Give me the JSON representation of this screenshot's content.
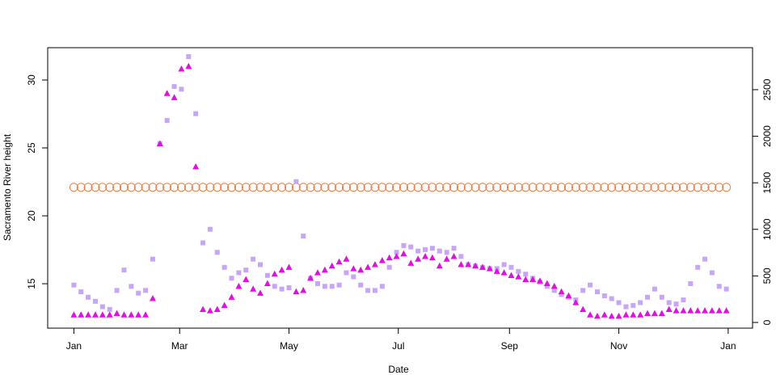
{
  "chart_data": {
    "type": "scatter",
    "x_label": "Date",
    "y_label": "Sacramento River height",
    "x": [
      0,
      4,
      8,
      12,
      16,
      20,
      24,
      28,
      32,
      36,
      40,
      44,
      48,
      52,
      56,
      60,
      64,
      68,
      72,
      76,
      80,
      84,
      88,
      92,
      96,
      100,
      104,
      108,
      112,
      116,
      120,
      124,
      128,
      132,
      136,
      140,
      144,
      148,
      152,
      156,
      160,
      164,
      168,
      172,
      176,
      180,
      184,
      188,
      192,
      196,
      200,
      204,
      208,
      212,
      216,
      220,
      224,
      228,
      232,
      236,
      240,
      244,
      248,
      252,
      256,
      260,
      264,
      268,
      272,
      276,
      280,
      284,
      288,
      292,
      296,
      300,
      304,
      308,
      312,
      316,
      320,
      324,
      328,
      332,
      336,
      340,
      344,
      348,
      352,
      356,
      360,
      364
    ],
    "xlim": [
      -14.6,
      378.6
    ],
    "xticks": [
      {
        "value": 0,
        "label": "Jan"
      },
      {
        "value": 59,
        "label": "Mar"
      },
      {
        "value": 120,
        "label": "May"
      },
      {
        "value": 181,
        "label": "Jul"
      },
      {
        "value": 243,
        "label": "Sep"
      },
      {
        "value": 304,
        "label": "Nov"
      },
      {
        "value": 365,
        "label": "Jan"
      }
    ],
    "ylim": [
      11.73,
      32.38
    ],
    "yticks": [
      15,
      20,
      25,
      30
    ],
    "y2lim": [
      -61,
      2951
    ],
    "y2ticks": [
      0,
      500,
      1000,
      1500,
      2000,
      2500
    ],
    "series": [
      {
        "marker": "circle",
        "color": "#e8804a",
        "values": [
          22.1,
          22.1,
          22.1,
          22.1,
          22.1,
          22.1,
          22.1,
          22.1,
          22.1,
          22.1,
          22.1,
          22.1,
          22.1,
          22.1,
          22.1,
          22.1,
          22.1,
          22.1,
          22.1,
          22.1,
          22.1,
          22.1,
          22.1,
          22.1,
          22.1,
          22.1,
          22.1,
          22.1,
          22.1,
          22.1,
          22.1,
          22.1,
          22.1,
          22.1,
          22.1,
          22.1,
          22.1,
          22.1,
          22.1,
          22.1,
          22.1,
          22.1,
          22.1,
          22.1,
          22.1,
          22.1,
          22.1,
          22.1,
          22.1,
          22.1,
          22.1,
          22.1,
          22.1,
          22.1,
          22.1,
          22.1,
          22.1,
          22.1,
          22.1,
          22.1,
          22.1,
          22.1,
          22.1,
          22.1,
          22.1,
          22.1,
          22.1,
          22.1,
          22.1,
          22.1,
          22.1,
          22.1,
          22.1,
          22.1,
          22.1,
          22.1,
          22.1,
          22.1,
          22.1,
          22.1,
          22.1,
          22.1,
          22.1,
          22.1,
          22.1,
          22.1,
          22.1,
          22.1,
          22.1,
          22.1,
          22.1,
          22.1
        ]
      },
      {
        "marker": "square",
        "color": "#c8a6f6",
        "axis": "y2",
        "values": [
          402,
          329,
          271,
          227,
          169,
          140,
          344,
          563,
          388,
          315,
          344,
          680,
          1921,
          2169,
          2534,
          2505,
          2855,
          2242,
          855,
          1001,
          753,
          592,
          475,
          534,
          563,
          680,
          621,
          505,
          388,
          359,
          373,
          1512,
          928,
          475,
          417,
          388,
          388,
          402,
          534,
          490,
          402,
          344,
          344,
          388,
          592,
          753,
          826,
          811,
          767,
          782,
          797,
          767,
          753,
          797,
          709,
          621,
          607,
          592,
          578,
          578,
          621,
          592,
          548,
          519,
          475,
          432,
          388,
          344,
          300,
          271,
          242,
          344,
          402,
          329,
          286,
          256,
          213,
          169,
          183,
          213,
          271,
          359,
          271,
          213,
          198,
          242,
          417,
          592,
          680,
          534,
          388,
          359
        ]
      },
      {
        "marker": "triangle",
        "color": "#e010e0",
        "values": [
          12.7,
          12.7,
          12.7,
          12.7,
          12.7,
          12.7,
          12.8,
          12.7,
          12.7,
          12.7,
          12.7,
          13.9,
          25.3,
          29.0,
          28.7,
          30.8,
          31.0,
          23.6,
          13.1,
          13.0,
          13.1,
          13.4,
          14.0,
          14.8,
          15.3,
          14.6,
          14.3,
          15.0,
          15.7,
          16.0,
          16.2,
          14.4,
          14.5,
          15.4,
          15.8,
          16.0,
          16.3,
          16.6,
          16.8,
          16.1,
          16.0,
          16.2,
          16.4,
          16.7,
          16.9,
          17.0,
          17.2,
          16.5,
          16.8,
          17.0,
          16.9,
          16.3,
          16.8,
          17.0,
          16.4,
          16.4,
          16.3,
          16.2,
          16.1,
          15.9,
          15.8,
          15.6,
          15.5,
          15.3,
          15.3,
          15.2,
          15.0,
          14.8,
          14.4,
          14.1,
          13.6,
          13.1,
          12.7,
          12.6,
          12.7,
          12.6,
          12.6,
          12.7,
          12.7,
          12.7,
          12.8,
          12.8,
          12.8,
          13.1,
          13.0,
          13.0,
          13.0,
          13.0,
          13.0,
          13.0,
          13.0,
          13.0
        ]
      }
    ]
  }
}
